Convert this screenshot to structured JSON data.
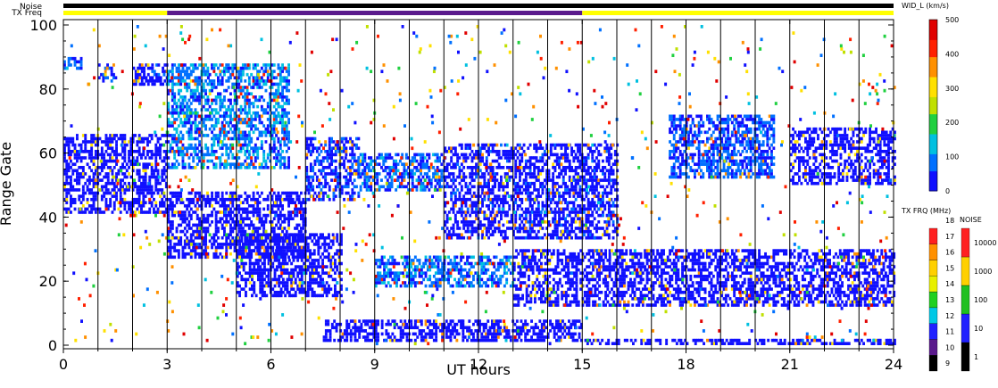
{
  "chart_data": {
    "type": "heatmap",
    "xlabel": "UT hours",
    "ylabel": "Range Gate",
    "xlim": [
      0,
      24
    ],
    "ylim": [
      0,
      100
    ],
    "x_ticks": [
      "0",
      "3",
      "6",
      "9",
      "12",
      "15",
      "18",
      "21",
      "24"
    ],
    "y_ticks": [
      "0",
      "20",
      "40",
      "60",
      "80",
      "100"
    ],
    "scan_boundaries_ut": [
      1,
      2,
      3,
      4,
      5,
      6,
      7,
      8,
      9,
      10,
      11,
      12,
      13,
      14,
      15,
      16,
      17,
      18,
      19,
      20,
      21,
      22,
      23
    ],
    "top_bars": {
      "noise_label": "Noise",
      "txfreq_label": "TX Freq",
      "txfreq_segments": [
        {
          "from": 0,
          "to": 3,
          "color": "#ffff00"
        },
        {
          "from": 3,
          "to": 15,
          "color": "#5a1a8c"
        },
        {
          "from": 15,
          "to": 24,
          "color": "#ffff00"
        }
      ]
    },
    "echo_regions": [
      {
        "t0": 0.0,
        "t1": 3.0,
        "g0": 41,
        "g1": 66,
        "value": 20
      },
      {
        "t0": 0.0,
        "t1": 0.5,
        "g0": 86,
        "g1": 90,
        "value": 60
      },
      {
        "t0": 1.0,
        "t1": 1.5,
        "g0": 82,
        "g1": 88,
        "value": 40
      },
      {
        "t0": 2.0,
        "t1": 3.0,
        "g0": 81,
        "g1": 88,
        "value": 40
      },
      {
        "t0": 3.0,
        "t1": 7.0,
        "g0": 27,
        "g1": 48,
        "value": 25
      },
      {
        "t0": 3.0,
        "t1": 6.5,
        "g0": 55,
        "g1": 88,
        "value": 90
      },
      {
        "t0": 5.0,
        "t1": 8.0,
        "g0": 15,
        "g1": 35,
        "value": 30
      },
      {
        "t0": 7.0,
        "t1": 8.5,
        "g0": 45,
        "g1": 65,
        "value": 40
      },
      {
        "t0": 7.5,
        "t1": 15.0,
        "g0": 1,
        "g1": 8,
        "value": 30
      },
      {
        "t0": 8.5,
        "t1": 11.0,
        "g0": 48,
        "g1": 60,
        "value": 70
      },
      {
        "t0": 9.0,
        "t1": 13.0,
        "g0": 18,
        "g1": 28,
        "value": 80
      },
      {
        "t0": 11.0,
        "t1": 16.0,
        "g0": 33,
        "g1": 63,
        "value": 35
      },
      {
        "t0": 13.0,
        "t1": 24.0,
        "g0": 12,
        "g1": 30,
        "value": 30
      },
      {
        "t0": 15.0,
        "t1": 24.0,
        "g0": 0,
        "g1": 2,
        "value": 15
      },
      {
        "t0": 17.5,
        "t1": 20.5,
        "g0": 52,
        "g1": 72,
        "value": 60
      },
      {
        "t0": 21.0,
        "t1": 24.0,
        "g0": 50,
        "g1": 68,
        "value": 25
      }
    ],
    "colorbars": [
      {
        "title": "WID_L (km/s)",
        "range": [
          0,
          500
        ],
        "ticks": [
          "0",
          "100",
          "200",
          "300",
          "400",
          "500"
        ]
      },
      {
        "title": "TX FRQ (MHz)",
        "range": [
          9,
          18
        ],
        "ticks": [
          "9",
          "10",
          "11",
          "12",
          "13",
          "14",
          "15",
          "16",
          "17",
          "18"
        ]
      },
      {
        "title": "NOISE",
        "scale": "log",
        "ticks": [
          "1",
          "10",
          "100",
          "1000",
          "10000"
        ]
      }
    ]
  },
  "colors": {
    "width_scale": [
      "#1010ff",
      "#0070ff",
      "#00c0e0",
      "#20d040",
      "#c0e000",
      "#ffe000",
      "#ff9000",
      "#ff2000",
      "#e00000"
    ],
    "frq_scale": [
      "#000000",
      "#5a1a8c",
      "#2020ff",
      "#00c8e6",
      "#20d020",
      "#e8f000",
      "#ffd000",
      "#ff9000",
      "#ff2020"
    ],
    "noise_scale": [
      "#000000",
      "#2020ff",
      "#20c020",
      "#ffd000",
      "#ff2020"
    ]
  }
}
